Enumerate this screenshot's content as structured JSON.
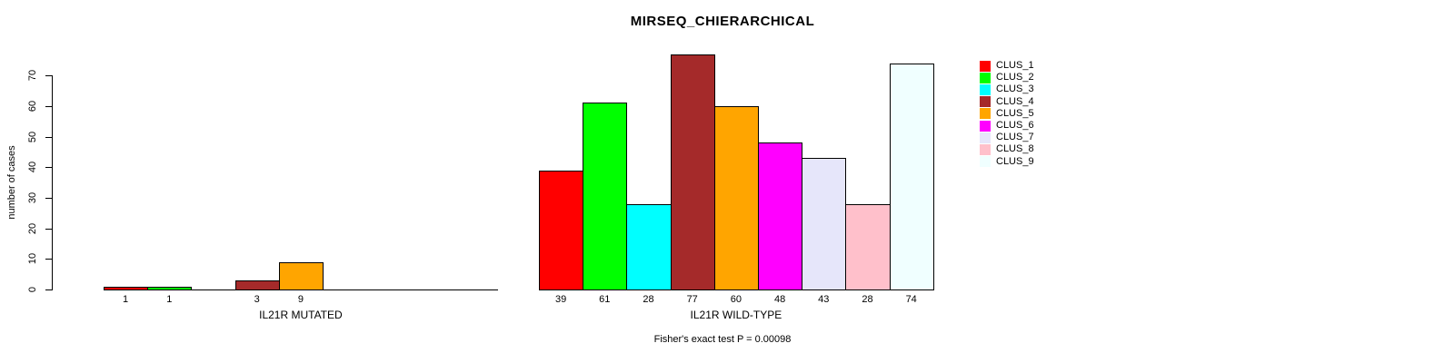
{
  "chart_data": {
    "type": "bar",
    "title": "MIRSEQ_CHIERARCHICAL",
    "ylabel": "number of cases",
    "ylim": [
      0,
      77
    ],
    "yticks": [
      0,
      10,
      20,
      30,
      40,
      50,
      60,
      70
    ],
    "grid": false,
    "legend_position": "right",
    "clusters": [
      "CLUS_1",
      "CLUS_2",
      "CLUS_3",
      "CLUS_4",
      "CLUS_5",
      "CLUS_6",
      "CLUS_7",
      "CLUS_8",
      "CLUS_9"
    ],
    "colors": [
      "#FF0000",
      "#00FF00",
      "#00FFFF",
      "#A52A2A",
      "#FFA500",
      "#FF00FF",
      "#E6E6FA",
      "#FFC0CB",
      "#F0FFFF"
    ],
    "groups": [
      {
        "label": "IL21R MUTATED",
        "values": [
          1,
          1,
          0,
          3,
          9,
          0,
          0,
          0,
          0
        ]
      },
      {
        "label": "IL21R WILD-TYPE",
        "values": [
          39,
          61,
          28,
          77,
          60,
          48,
          43,
          28,
          74
        ]
      }
    ],
    "annotation": "Fisher's exact test P = 0.00098"
  }
}
